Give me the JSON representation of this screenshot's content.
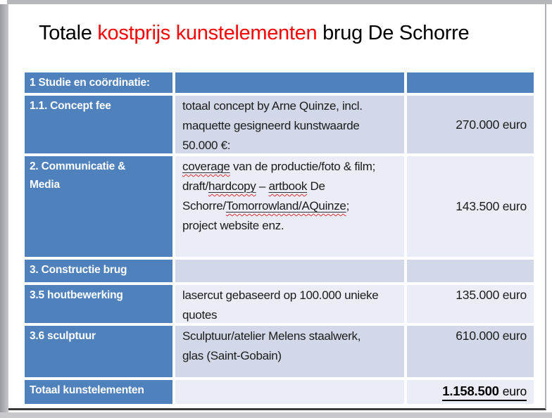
{
  "colors": {
    "accent_blue": "#4f81bd",
    "band_dark": "#d2d8e8",
    "band_light": "#eaedf5",
    "title_red": "#ff0000",
    "squiggle_red": "#e03434"
  },
  "slide": {
    "title": {
      "prefix": "Totale ",
      "highlight": "kostprijs kunstelementen",
      "suffix": " brug De Schorre"
    },
    "table": {
      "section_header": "1 Studie en coördinatie:",
      "rows": [
        {
          "label": "1.1. Concept fee",
          "desc": "totaal concept by Arne Quinze, incl.\nmaquette gesigneerd kunstwaarde\n50.000 €:",
          "amount": "270.000 euro"
        },
        {
          "label": "2. Communicatie &\nMedia",
          "desc_segments": [
            {
              "text": "coverage",
              "flagged": true
            },
            {
              "text": " van de productie/foto & film;\ndraft/",
              "flagged": false
            },
            {
              "text": "hardcopy",
              "flagged": true
            },
            {
              "text": " – ",
              "flagged": false
            },
            {
              "text": "artbook",
              "flagged": true
            },
            {
              "text": " De\nSchorre/",
              "flagged": false
            },
            {
              "text": "Tomorrowland/AQuinze",
              "flagged": true
            },
            {
              "text": ";\nproject website enz.",
              "flagged": false
            }
          ],
          "amount": "143.500 euro"
        },
        {
          "label": "3. Constructie brug",
          "desc": "",
          "amount": ""
        },
        {
          "label": "3.5 houtbewerking",
          "desc": "lasercut gebaseerd op 100.000 unieke\nquotes",
          "amount": "135.000 euro"
        },
        {
          "label": "3.6 sculptuur",
          "desc": "Sculptuur/atelier Melens staalwerk,\nglas (Saint-Gobain)",
          "amount": "610.000 euro"
        }
      ],
      "total": {
        "label": "Totaal kunstelementen",
        "amount_value": "1.158.500",
        "amount_unit": "euro"
      }
    }
  }
}
